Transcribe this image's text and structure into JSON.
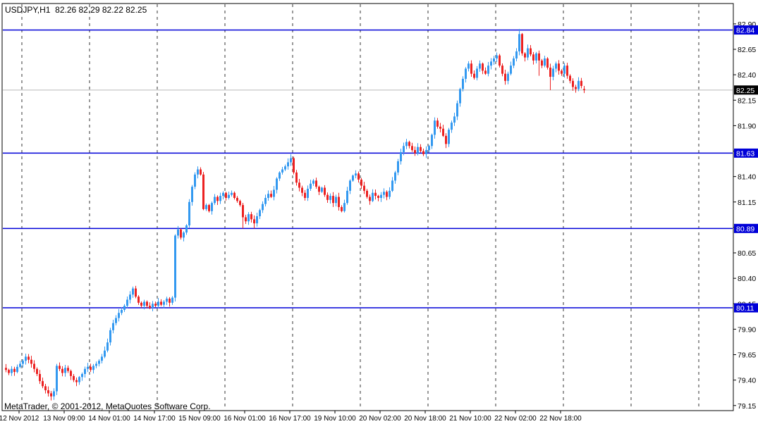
{
  "header": {
    "title": "USDJPY,H1  82.26 82.29 82.22 82.25"
  },
  "footer": {
    "copyright": "MetaTrader, © 2001-2012, MetaQuotes Software Corp."
  },
  "chart_data": {
    "type": "candlestick",
    "symbol": "USDJPY",
    "timeframe": "H1",
    "current_bar": {
      "open": 82.26,
      "high": 82.29,
      "low": 82.22,
      "close": 82.25
    },
    "y_axis": {
      "min": 79.15,
      "max": 82.9,
      "step": 0.25,
      "ylim": [
        79.1,
        83.1
      ]
    },
    "x_labels": [
      "12 Nov 2012",
      "13 Nov 09:00",
      "14 Nov 01:00",
      "14 Nov 17:00",
      "15 Nov 09:00",
      "16 Nov 01:00",
      "16 Nov 17:00",
      "19 Nov 10:00",
      "20 Nov 02:00",
      "20 Nov 18:00",
      "21 Nov 10:00",
      "22 Nov 02:00",
      "22 Nov 18:00"
    ],
    "grid": {
      "vertical_dashed": true,
      "horizontal": false
    },
    "hlines": [
      {
        "price": 82.84,
        "label": "82.84",
        "color": "#0000d8"
      },
      {
        "price": 81.63,
        "label": "81.63",
        "color": "#0000d8"
      },
      {
        "price": 80.89,
        "label": "80.89",
        "color": "#0000d8"
      },
      {
        "price": 80.11,
        "label": "80.11",
        "color": "#0000d8"
      }
    ],
    "current_price_line": {
      "price": 82.25,
      "label": "82.25",
      "line_color": "#b8b8b8",
      "box_color": "#000000"
    },
    "colors": {
      "up": "#3399f0",
      "down": "#ec2222",
      "grid": "#333333",
      "background": "#ffffff",
      "border": "#000000",
      "axis_text": "#000000",
      "box_text": "#ffffff",
      "hline_blue": "#0000d8"
    },
    "closes": [
      79.5,
      79.47,
      79.51,
      79.48,
      79.53,
      79.56,
      79.59,
      79.63,
      79.6,
      79.56,
      79.51,
      79.46,
      79.39,
      79.34,
      79.3,
      79.27,
      79.24,
      79.29,
      79.54,
      79.51,
      79.47,
      79.52,
      79.49,
      79.44,
      79.4,
      79.38,
      79.43,
      79.46,
      79.51,
      79.53,
      79.5,
      79.54,
      79.56,
      79.59,
      79.63,
      79.69,
      79.77,
      79.89,
      79.96,
      80.01,
      80.06,
      80.09,
      80.13,
      80.19,
      80.24,
      80.3,
      80.22,
      80.16,
      80.13,
      80.17,
      80.13,
      80.11,
      80.15,
      80.13,
      80.17,
      80.14,
      80.17,
      80.2,
      80.16,
      80.21,
      80.82,
      80.88,
      80.8,
      80.85,
      80.92,
      81.15,
      81.3,
      81.42,
      81.47,
      81.42,
      81.08,
      81.12,
      81.06,
      81.14,
      81.2,
      81.16,
      81.21,
      81.24,
      81.19,
      81.22,
      81.24,
      81.19,
      81.16,
      81.12,
      81.0,
      80.96,
      81.03,
      80.98,
      80.94,
      81.01,
      81.07,
      81.13,
      81.19,
      81.23,
      81.2,
      81.27,
      81.38,
      81.44,
      81.47,
      81.5,
      81.54,
      81.58,
      81.44,
      81.34,
      81.29,
      81.24,
      81.19,
      81.28,
      81.33,
      81.36,
      81.3,
      81.25,
      81.29,
      81.22,
      81.17,
      81.21,
      81.14,
      81.2,
      81.1,
      81.06,
      81.14,
      81.26,
      81.36,
      81.41,
      81.43,
      81.37,
      81.31,
      81.26,
      81.2,
      81.16,
      81.24,
      81.21,
      81.19,
      81.22,
      81.25,
      81.2,
      81.26,
      81.36,
      81.44,
      81.55,
      81.64,
      81.7,
      81.74,
      81.7,
      81.66,
      81.63,
      81.69,
      81.65,
      81.62,
      81.66,
      81.7,
      81.81,
      81.95,
      81.89,
      81.87,
      81.8,
      81.72,
      81.86,
      81.93,
      81.99,
      82.12,
      82.26,
      82.36,
      82.46,
      82.51,
      82.41,
      82.37,
      82.46,
      82.51,
      82.44,
      82.41,
      82.49,
      82.53,
      82.56,
      82.59,
      82.49,
      82.41,
      82.34,
      82.41,
      82.49,
      82.56,
      82.63,
      82.8,
      82.61,
      82.57,
      82.66,
      82.6,
      82.54,
      82.61,
      82.54,
      82.49,
      82.56,
      82.47,
      82.38,
      82.46,
      82.51,
      82.44,
      82.41,
      82.49,
      82.39,
      82.34,
      82.28,
      82.26,
      82.34,
      82.29,
      82.25
    ],
    "overrides": {
      "7": {
        "h": 79.66
      },
      "16": {
        "l": 79.2
      },
      "68": {
        "h": 81.5
      },
      "84": {
        "l": 80.89
      },
      "88": {
        "l": 80.89
      },
      "101": {
        "h": 81.62
      },
      "142": {
        "h": 81.77
      },
      "156": {
        "l": 81.68
      },
      "182": {
        "h": 82.85
      },
      "189": {
        "l": 82.39
      },
      "193": {
        "l": 82.25
      },
      "205": {
        "o": 82.26,
        "h": 82.29,
        "l": 82.22
      }
    }
  }
}
